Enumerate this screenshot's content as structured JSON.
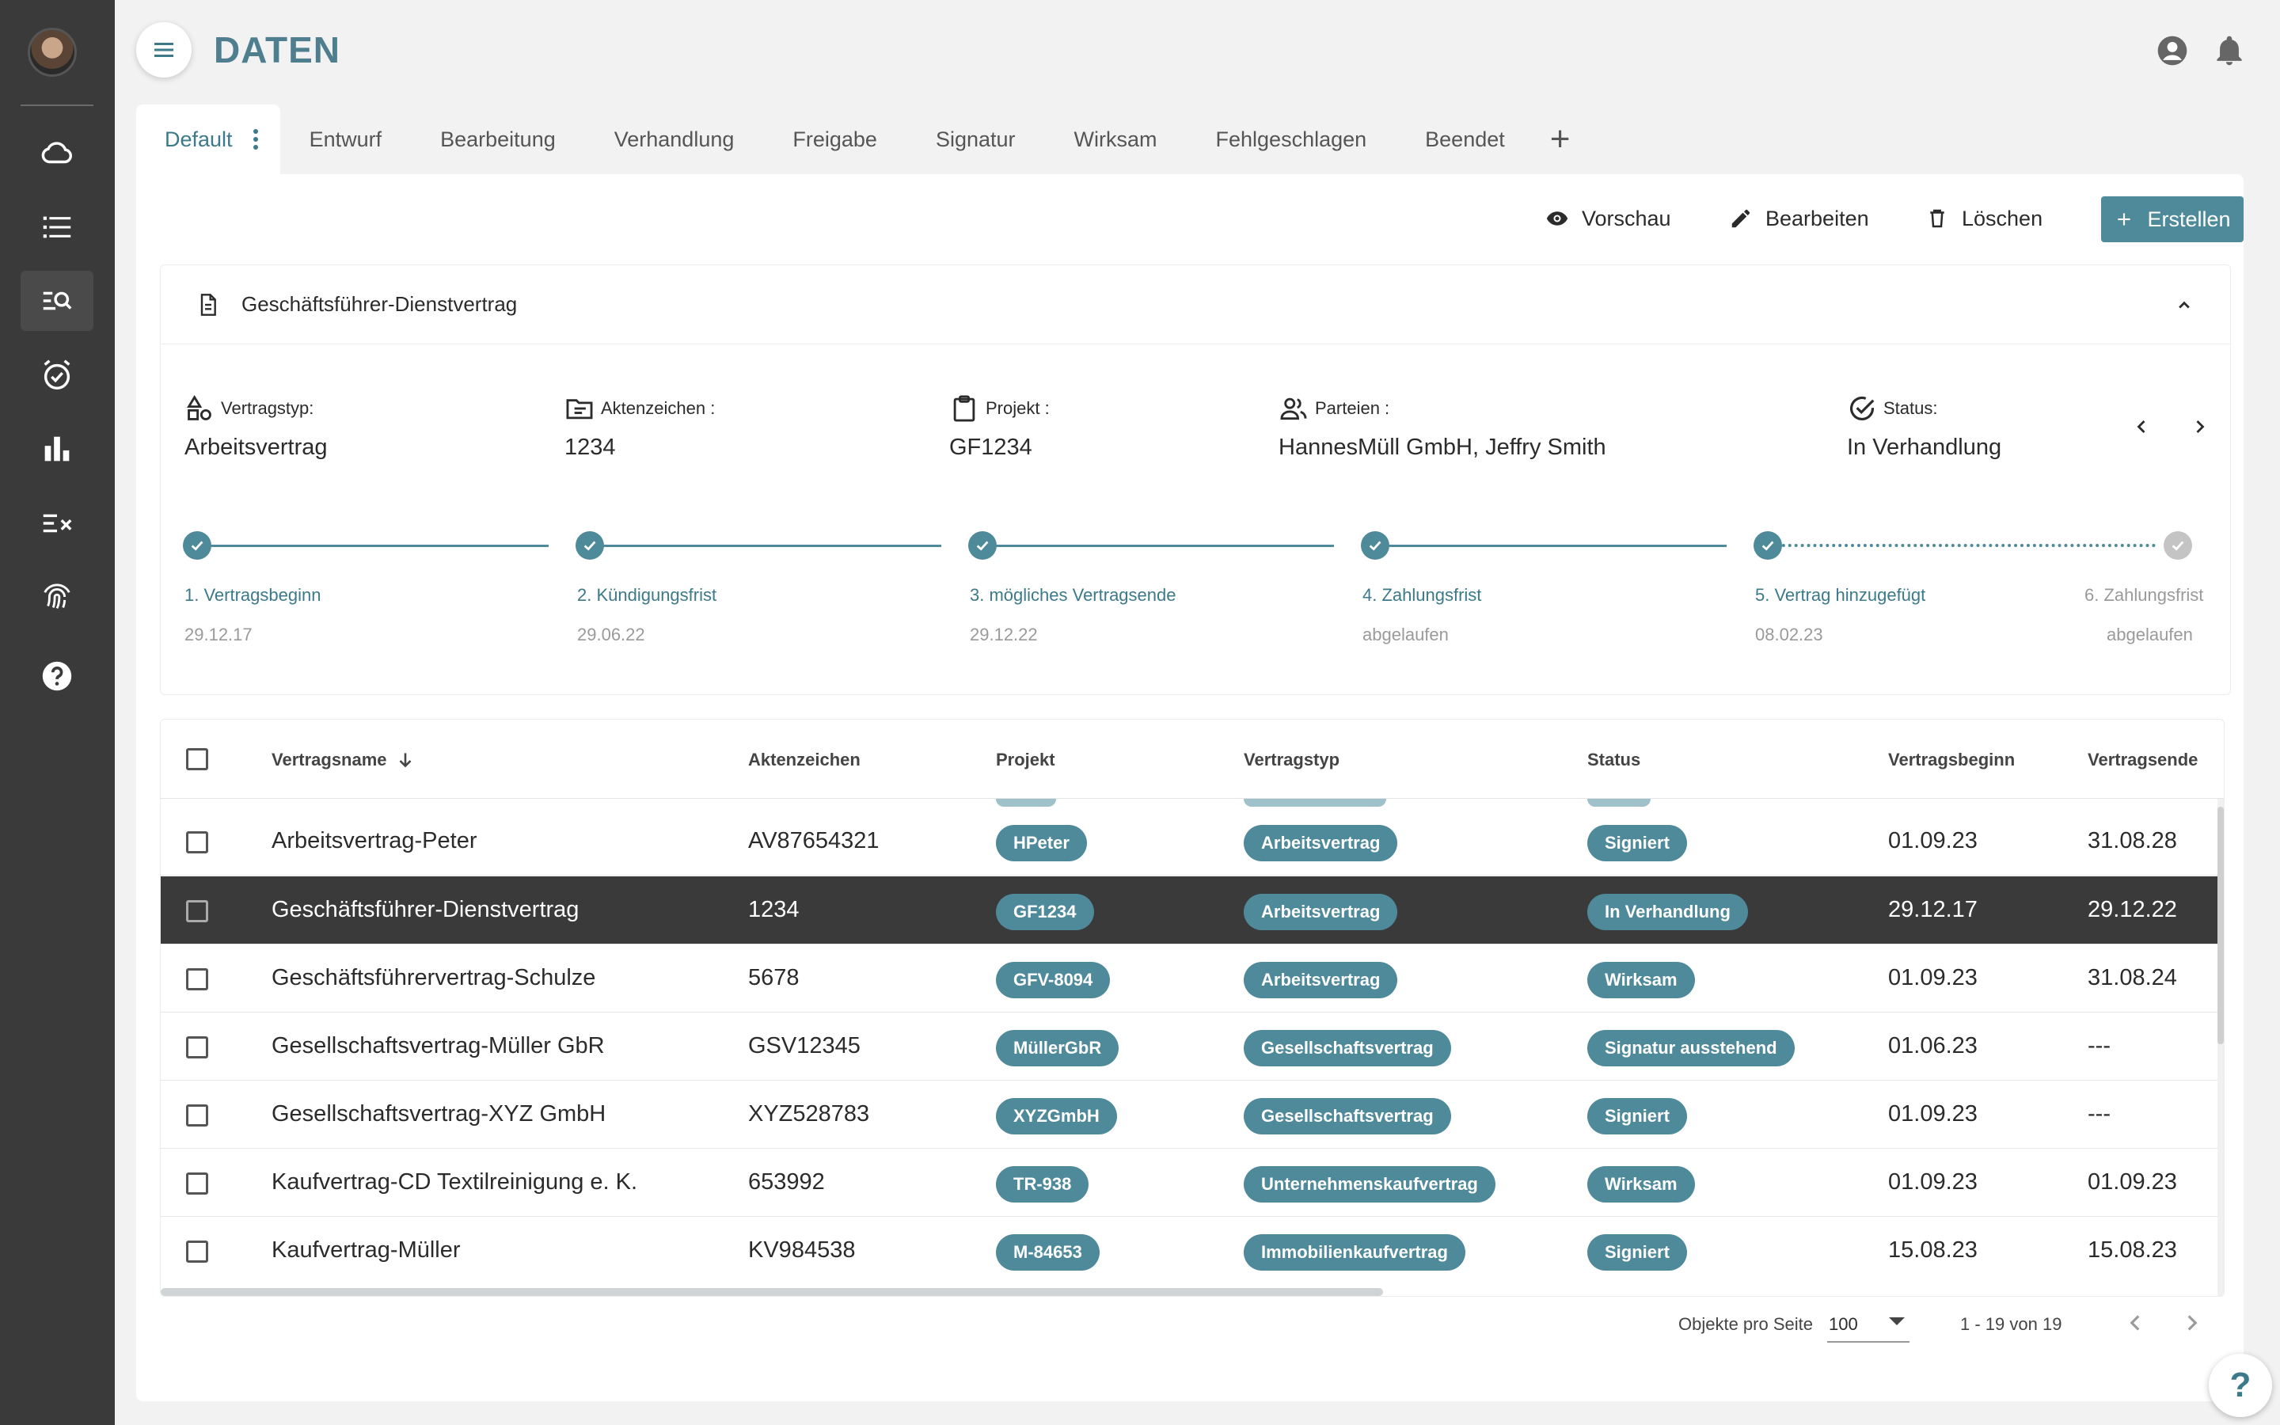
{
  "app": {
    "title": "DATEN"
  },
  "sidebar": {
    "items": [
      {
        "icon": "cloud-icon"
      },
      {
        "icon": "list-icon"
      },
      {
        "icon": "search-list-icon",
        "active": true
      },
      {
        "icon": "alarm-check-icon"
      },
      {
        "icon": "bar-chart-icon"
      },
      {
        "icon": "checklist-x-icon"
      },
      {
        "icon": "fingerprint-icon"
      },
      {
        "icon": "help-circle-icon"
      }
    ]
  },
  "tabs": [
    "Default",
    "Entwurf",
    "Bearbeitung",
    "Verhandlung",
    "Freigabe",
    "Signatur",
    "Wirksam",
    "Fehlgeschlagen",
    "Beendet"
  ],
  "tab_add": "+",
  "toolbar": {
    "preview": "Vorschau",
    "edit": "Bearbeiten",
    "delete": "Löschen",
    "create": "Erstellen"
  },
  "detail": {
    "title": "Geschäftsführer-Dienstvertrag",
    "fields": [
      {
        "label": "Vertragstyp:",
        "value": "Arbeitsvertrag"
      },
      {
        "label": "Aktenzeichen :",
        "value": "1234"
      },
      {
        "label": "Projekt :",
        "value": "GF1234"
      },
      {
        "label": "Parteien :",
        "value": "HannesMüll GmbH, Jeffry Smith"
      },
      {
        "label": "Status:",
        "value": "In Verhandlung"
      }
    ],
    "timeline": [
      {
        "label": "1. Vertragsbeginn",
        "date": "29.12.17"
      },
      {
        "label": "2. Kündigungsfrist",
        "date": "29.06.22"
      },
      {
        "label": "3. mögliches Vertragsende",
        "date": "29.12.22"
      },
      {
        "label": "4. Zahlungsfrist",
        "date": "abgelaufen"
      },
      {
        "label": "5. Vertrag hinzugefügt",
        "date": "08.02.23"
      },
      {
        "label": "6. Zahlungsfrist",
        "date": "abgelaufen"
      }
    ]
  },
  "table": {
    "columns": [
      "Vertragsname",
      "Aktenzeichen",
      "Projekt",
      "Vertragstyp",
      "Status",
      "Vertragsbeginn",
      "Vertragsende"
    ],
    "rows": [
      {
        "name": "Arbeitsvertrag-Peter",
        "az": "AV87654321",
        "projekt": "HPeter",
        "typ": "Arbeitsvertrag",
        "status": "Signiert",
        "beginn": "01.09.23",
        "ende": "31.08.28"
      },
      {
        "name": "Geschäftsführer-Dienstvertrag",
        "az": "1234",
        "projekt": "GF1234",
        "typ": "Arbeitsvertrag",
        "status": "In Verhandlung",
        "beginn": "29.12.17",
        "ende": "29.12.22",
        "selected": true
      },
      {
        "name": "Geschäftsführervertrag-Schulze",
        "az": "5678",
        "projekt": "GFV-8094",
        "typ": "Arbeitsvertrag",
        "status": "Wirksam",
        "beginn": "01.09.23",
        "ende": "31.08.24"
      },
      {
        "name": "Gesellschaftsvertrag-Müller GbR",
        "az": "GSV12345",
        "projekt": "MüllerGbR",
        "typ": "Gesellschaftsvertrag",
        "status": "Signatur ausstehend",
        "beginn": "01.06.23",
        "ende": "---"
      },
      {
        "name": "Gesellschaftsvertrag-XYZ GmbH",
        "az": "XYZ528783",
        "projekt": "XYZGmbH",
        "typ": "Gesellschaftsvertrag",
        "status": "Signiert",
        "beginn": "01.09.23",
        "ende": "---"
      },
      {
        "name": "Kaufvertrag-CD Textilreinigung e. K.",
        "az": "653992",
        "projekt": "TR-938",
        "typ": "Unternehmenskaufvertrag",
        "status": "Wirksam",
        "beginn": "01.09.23",
        "ende": "01.09.23"
      },
      {
        "name": "Kaufvertrag-Müller",
        "az": "KV984538",
        "projekt": "M-84653",
        "typ": "Immobilienkaufvertrag",
        "status": "Signiert",
        "beginn": "15.08.23",
        "ende": "15.08.23"
      }
    ]
  },
  "pagination": {
    "per_page_label": "Objekte pro Seite",
    "per_page": "100",
    "range": "1 - 19 von 19"
  },
  "help_fab": "?"
}
